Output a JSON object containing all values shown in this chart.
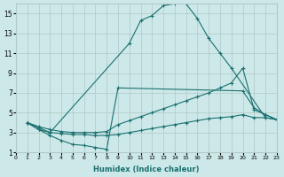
{
  "xlabel": "Humidex (Indice chaleur)",
  "xlim": [
    0,
    23
  ],
  "ylim": [
    1,
    16
  ],
  "xticks": [
    0,
    1,
    2,
    3,
    4,
    5,
    6,
    7,
    8,
    9,
    10,
    11,
    12,
    13,
    14,
    15,
    16,
    17,
    18,
    19,
    20,
    21,
    22,
    23
  ],
  "yticks": [
    1,
    3,
    5,
    7,
    9,
    11,
    13,
    15
  ],
  "background_color": "#cde8e8",
  "grid_color": "#b0c8c8",
  "line_color": "#1a7070",
  "curves": [
    {
      "x": [
        1,
        2,
        3,
        10,
        11,
        12,
        13,
        14,
        15,
        16,
        17,
        18,
        19,
        22,
        23
      ],
      "y": [
        4.0,
        3.3,
        3.0,
        12.0,
        14.3,
        14.8,
        15.8,
        16.0,
        16.0,
        14.5,
        12.5,
        11.0,
        9.5,
        4.5,
        4.3
      ]
    },
    {
      "x": [
        1,
        2,
        3,
        4,
        5,
        6,
        7,
        8,
        9,
        20,
        21,
        22,
        23
      ],
      "y": [
        4.0,
        3.3,
        2.7,
        2.2,
        1.8,
        1.7,
        1.5,
        1.3,
        7.5,
        7.2,
        5.5,
        4.8,
        4.3
      ]
    },
    {
      "x": [
        1,
        2,
        3,
        4,
        5,
        6,
        7,
        8,
        9,
        10,
        11,
        12,
        13,
        14,
        15,
        16,
        17,
        18,
        19,
        20,
        21,
        22,
        23
      ],
      "y": [
        4.0,
        3.6,
        3.3,
        3.1,
        3.0,
        3.0,
        3.0,
        3.1,
        3.8,
        4.2,
        4.6,
        5.0,
        5.4,
        5.8,
        6.2,
        6.6,
        7.0,
        7.5,
        8.0,
        9.5,
        5.3,
        4.8,
        4.3
      ]
    },
    {
      "x": [
        1,
        2,
        3,
        4,
        5,
        6,
        7,
        8,
        9,
        10,
        11,
        12,
        13,
        14,
        15,
        16,
        17,
        18,
        19,
        20,
        21,
        22,
        23
      ],
      "y": [
        4.0,
        3.5,
        3.0,
        2.9,
        2.8,
        2.8,
        2.7,
        2.7,
        2.8,
        3.0,
        3.2,
        3.4,
        3.6,
        3.8,
        4.0,
        4.2,
        4.4,
        4.5,
        4.6,
        4.8,
        4.5,
        4.5,
        4.3
      ]
    }
  ]
}
